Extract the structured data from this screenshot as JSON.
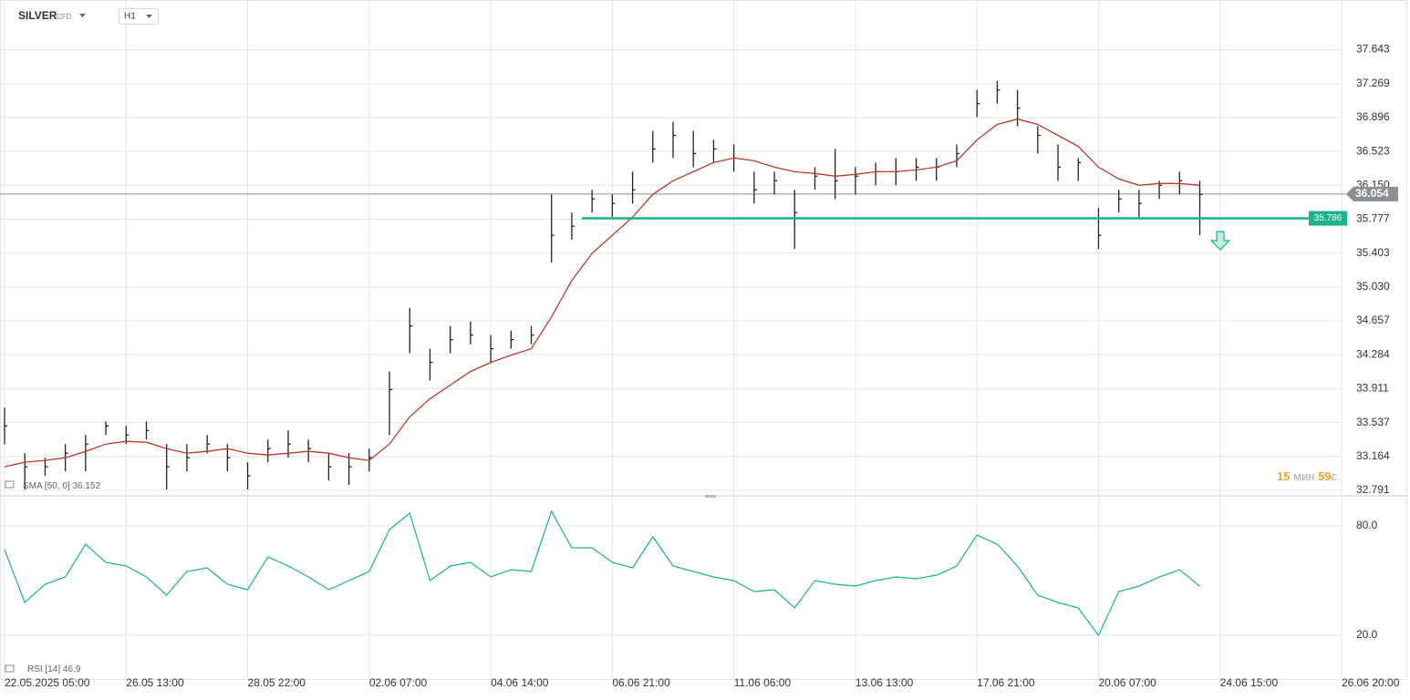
{
  "header": {
    "symbol": "SILVER",
    "instrument_type": "CFD",
    "timeframe": "H1"
  },
  "timer": {
    "minutes": "15",
    "minutes_unit": "мин",
    "seconds": "59",
    "seconds_unit": "с."
  },
  "chart_data": [
    {
      "type": "ohlc",
      "categories": [
        "22.05.2025 05:00",
        null,
        null,
        null,
        null,
        null,
        "26.05 13:00",
        null,
        null,
        null,
        null,
        null,
        "28.05 22:00",
        null,
        null,
        null,
        null,
        null,
        "02.06 07:00",
        null,
        null,
        null,
        null,
        null,
        "04.06 14:00",
        null,
        null,
        null,
        null,
        null,
        "06.06 21:00",
        null,
        null,
        null,
        null,
        null,
        "11.06 06:00",
        null,
        null,
        null,
        null,
        null,
        "13.06 13:00",
        null,
        null,
        null,
        null,
        null,
        "17.06 21:00",
        null,
        null,
        null,
        null,
        null,
        "20.06 07:00",
        null,
        null,
        null,
        null,
        null,
        "24.06 15:00",
        null,
        null,
        null,
        null,
        null,
        "26.06 20:00"
      ],
      "high": [
        33.7,
        33.2,
        33.15,
        33.3,
        33.4,
        33.55,
        33.5,
        33.55,
        33.3,
        33.3,
        33.4,
        33.3,
        33.1,
        33.35,
        33.45,
        33.35,
        33.2,
        33.2,
        33.25,
        34.1,
        34.8,
        34.35,
        34.6,
        34.65,
        34.5,
        34.55,
        34.6,
        36.05,
        35.85,
        36.1,
        36.05,
        36.3,
        36.75,
        36.85,
        36.75,
        36.65,
        36.6,
        36.3,
        36.3,
        36.1,
        36.35,
        36.55,
        36.35,
        36.4,
        36.45,
        36.45,
        36.45,
        36.6,
        37.2,
        37.3,
        37.2,
        36.8,
        36.6,
        36.45,
        35.9,
        36.1,
        36.1,
        36.2,
        36.3,
        36.2,
        null,
        null,
        null,
        null,
        null,
        null,
        null
      ],
      "low": [
        33.3,
        32.8,
        32.95,
        33.0,
        33.0,
        33.4,
        33.3,
        33.35,
        32.8,
        33.0,
        33.2,
        33.0,
        32.8,
        33.1,
        33.15,
        33.1,
        32.9,
        32.85,
        33.0,
        33.4,
        34.3,
        34.0,
        34.3,
        34.4,
        34.2,
        34.35,
        34.4,
        35.3,
        35.55,
        35.85,
        35.8,
        35.95,
        36.4,
        36.45,
        36.35,
        36.4,
        36.3,
        35.95,
        36.05,
        35.45,
        36.1,
        36.0,
        36.05,
        36.15,
        36.15,
        36.2,
        36.2,
        36.35,
        36.9,
        37.05,
        36.8,
        36.5,
        36.2,
        36.2,
        35.45,
        35.85,
        35.8,
        36.0,
        36.05,
        35.6,
        null,
        null,
        null,
        null,
        null,
        null,
        null
      ],
      "close": [
        33.5,
        33.05,
        33.05,
        33.2,
        33.3,
        33.5,
        33.4,
        33.45,
        33.05,
        33.15,
        33.3,
        33.15,
        32.95,
        33.25,
        33.3,
        33.25,
        33.05,
        33.05,
        33.15,
        33.9,
        34.6,
        34.2,
        34.45,
        34.5,
        34.35,
        34.45,
        34.5,
        35.6,
        35.7,
        36.0,
        35.95,
        36.1,
        36.55,
        36.7,
        36.5,
        36.55,
        36.45,
        36.1,
        36.2,
        35.85,
        36.25,
        36.2,
        36.25,
        36.3,
        36.3,
        36.35,
        36.35,
        36.5,
        37.05,
        37.2,
        37.0,
        36.7,
        36.35,
        36.4,
        35.6,
        36.0,
        35.95,
        36.15,
        36.2,
        36.05,
        null,
        null,
        null,
        null,
        null,
        null,
        null
      ],
      "color": "#222222",
      "ylim": [
        32.74,
        38.01
      ],
      "yticks": [
        32.791,
        33.164,
        33.537,
        33.911,
        34.284,
        34.657,
        {
          "value": 35.03,
          "label": "35.030"
        },
        35.403,
        35.777,
        {
          "value": 36.15,
          "label": "36.150"
        },
        36.523,
        36.896,
        37.269,
        37.643
      ],
      "grid": true,
      "indicator": {
        "name": "SMA [50, 0]",
        "value": 36.152,
        "color": "#c0392b",
        "values": [
          33.05,
          33.1,
          33.12,
          33.15,
          33.22,
          33.3,
          33.33,
          33.32,
          33.25,
          33.2,
          33.22,
          33.25,
          33.2,
          33.18,
          33.2,
          33.22,
          33.2,
          33.15,
          33.12,
          33.3,
          33.6,
          33.8,
          33.95,
          34.1,
          34.2,
          34.28,
          34.35,
          34.7,
          35.1,
          35.4,
          35.6,
          35.8,
          36.05,
          36.2,
          36.3,
          36.4,
          36.45,
          36.42,
          36.35,
          36.3,
          36.28,
          36.25,
          36.27,
          36.3,
          36.3,
          36.32,
          36.35,
          36.42,
          36.65,
          36.82,
          36.88,
          36.82,
          36.7,
          36.58,
          36.35,
          36.22,
          36.15,
          36.17,
          36.17,
          36.15,
          null,
          null,
          null,
          null,
          null,
          null,
          null
        ]
      },
      "last_price": 36.054,
      "horizontal_line": {
        "value": 35.786,
        "color": "#1db38a"
      }
    },
    {
      "type": "line",
      "name": "RSI [14]",
      "value": 46.9,
      "color": "#1db38a",
      "values": [
        67,
        38,
        48,
        52,
        70,
        60,
        58,
        52,
        42,
        55,
        57,
        48,
        45,
        63,
        58,
        52,
        45,
        50,
        55,
        78,
        87,
        50,
        58,
        60,
        52,
        56,
        55,
        88,
        68,
        68,
        60,
        57,
        74,
        58,
        55,
        52,
        50,
        44,
        45,
        35,
        50,
        48,
        47,
        50,
        52,
        51,
        53,
        58,
        75,
        70,
        58,
        42,
        38,
        35,
        20,
        44,
        47,
        52,
        56,
        46.9,
        null,
        null,
        null,
        null,
        null,
        null,
        null
      ],
      "ylim": [
        -1.5,
        94.5
      ],
      "yticks": [
        {
          "value": 20,
          "label": "20.0"
        },
        {
          "value": 80,
          "label": "80.0"
        }
      ]
    }
  ]
}
